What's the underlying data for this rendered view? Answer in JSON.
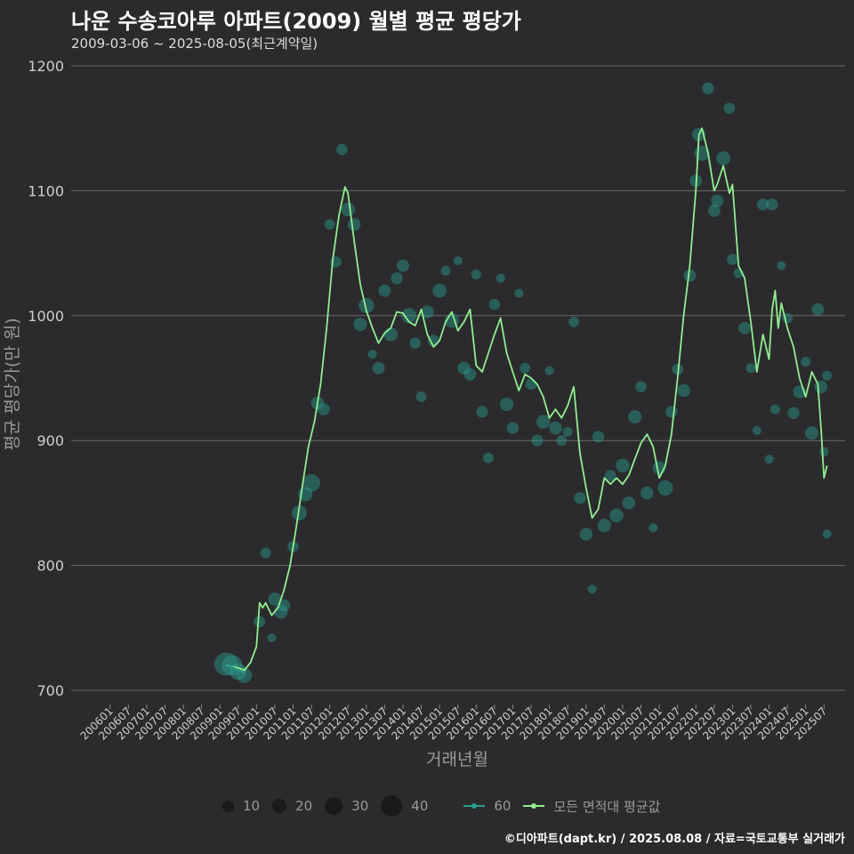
{
  "header": {
    "title": "나운 수송코아루 아파트(2009) 월별 평균 평당가",
    "subtitle": "2009-03-06 ~ 2025-08-05(최근계약일)"
  },
  "footer": {
    "credit": "©디아파트(dapt.kr) / 2025.08.08 / 자료=국토교통부 실거래가"
  },
  "colors": {
    "background": "#2b2b2d",
    "series_60": "#2a9d8f",
    "series_all": "#90ee90",
    "grid": "#6a6a6a"
  },
  "legend": {
    "size_items": [
      {
        "label": "10",
        "value": 10
      },
      {
        "label": "20",
        "value": 20
      },
      {
        "label": "30",
        "value": 30
      },
      {
        "label": "40",
        "value": 40
      }
    ],
    "series_items": [
      {
        "label": "60",
        "color": "#2a9d8f"
      },
      {
        "label": "모든 면적대 평균값",
        "color": "#90ee90"
      }
    ]
  },
  "chart_data": {
    "type": "line",
    "title": "나운 수송코아루 아파트(2009) 월별 평균 평당가",
    "xlabel": "거래년월",
    "ylabel": "평균 평당가(만 원)",
    "ylim": [
      690,
      1210
    ],
    "yticks": [
      700,
      800,
      900,
      1000,
      1100,
      1200
    ],
    "x_start": "2006-01",
    "x_end": "2025-08",
    "xtick_labels": [
      "200601",
      "200607",
      "200701",
      "200707",
      "200801",
      "200807",
      "200901",
      "200907",
      "201001",
      "201007",
      "201101",
      "201107",
      "201201",
      "201207",
      "201301",
      "201307",
      "201401",
      "201407",
      "201501",
      "201507",
      "201601",
      "201607",
      "201701",
      "201707",
      "201801",
      "201807",
      "201901",
      "201907",
      "202001",
      "202007",
      "202101",
      "202107",
      "202201",
      "202207",
      "202301",
      "202307",
      "202401",
      "202407",
      "202501",
      "202507"
    ],
    "series": [
      {
        "name": "모든 면적대 평균값",
        "values": [
          [
            "2009-03",
            720
          ],
          [
            "2009-05",
            719
          ],
          [
            "2009-07",
            718
          ],
          [
            "2009-09",
            716
          ],
          [
            "2009-11",
            722
          ],
          [
            "2010-01",
            735
          ],
          [
            "2010-02",
            770
          ],
          [
            "2010-03",
            766
          ],
          [
            "2010-04",
            770
          ],
          [
            "2010-06",
            760
          ],
          [
            "2010-08",
            766
          ],
          [
            "2010-10",
            780
          ],
          [
            "2010-12",
            800
          ],
          [
            "2011-02",
            830
          ],
          [
            "2011-04",
            863
          ],
          [
            "2011-06",
            895
          ],
          [
            "2011-08",
            915
          ],
          [
            "2011-10",
            945
          ],
          [
            "2011-12",
            990
          ],
          [
            "2012-02",
            1045
          ],
          [
            "2012-04",
            1080
          ],
          [
            "2012-06",
            1103
          ],
          [
            "2012-07",
            1098
          ],
          [
            "2012-09",
            1060
          ],
          [
            "2012-11",
            1025
          ],
          [
            "2013-01",
            1004
          ],
          [
            "2013-03",
            990
          ],
          [
            "2013-05",
            978
          ],
          [
            "2013-07",
            986
          ],
          [
            "2013-09",
            990
          ],
          [
            "2013-11",
            1003
          ],
          [
            "2014-01",
            1002
          ],
          [
            "2014-03",
            995
          ],
          [
            "2014-05",
            992
          ],
          [
            "2014-07",
            1005
          ],
          [
            "2014-09",
            985
          ],
          [
            "2014-11",
            975
          ],
          [
            "2015-01",
            980
          ],
          [
            "2015-03",
            995
          ],
          [
            "2015-05",
            1003
          ],
          [
            "2015-07",
            988
          ],
          [
            "2015-09",
            995
          ],
          [
            "2015-11",
            1005
          ],
          [
            "2016-01",
            960
          ],
          [
            "2016-03",
            955
          ],
          [
            "2016-05",
            970
          ],
          [
            "2016-07",
            985
          ],
          [
            "2016-09",
            998
          ],
          [
            "2016-11",
            970
          ],
          [
            "2017-01",
            955
          ],
          [
            "2017-03",
            940
          ],
          [
            "2017-05",
            953
          ],
          [
            "2017-07",
            950
          ],
          [
            "2017-09",
            945
          ],
          [
            "2017-11",
            935
          ],
          [
            "2018-01",
            918
          ],
          [
            "2018-03",
            925
          ],
          [
            "2018-05",
            918
          ],
          [
            "2018-07",
            928
          ],
          [
            "2018-09",
            943
          ],
          [
            "2018-11",
            890
          ],
          [
            "2019-01",
            862
          ],
          [
            "2019-03",
            838
          ],
          [
            "2019-05",
            845
          ],
          [
            "2019-07",
            870
          ],
          [
            "2019-09",
            865
          ],
          [
            "2019-11",
            870
          ],
          [
            "2020-01",
            865
          ],
          [
            "2020-03",
            872
          ],
          [
            "2020-05",
            885
          ],
          [
            "2020-07",
            898
          ],
          [
            "2020-09",
            905
          ],
          [
            "2020-11",
            895
          ],
          [
            "2021-01",
            870
          ],
          [
            "2021-03",
            880
          ],
          [
            "2021-05",
            905
          ],
          [
            "2021-07",
            950
          ],
          [
            "2021-09",
            1000
          ],
          [
            "2021-11",
            1040
          ],
          [
            "2022-01",
            1100
          ],
          [
            "2022-02",
            1145
          ],
          [
            "2022-03",
            1150
          ],
          [
            "2022-05",
            1130
          ],
          [
            "2022-07",
            1100
          ],
          [
            "2022-08",
            1105
          ],
          [
            "2022-10",
            1120
          ],
          [
            "2022-12",
            1098
          ],
          [
            "2023-01",
            1105
          ],
          [
            "2023-03",
            1040
          ],
          [
            "2023-05",
            1030
          ],
          [
            "2023-07",
            995
          ],
          [
            "2023-09",
            955
          ],
          [
            "2023-11",
            985
          ],
          [
            "2024-01",
            965
          ],
          [
            "2024-02",
            1005
          ],
          [
            "2024-03",
            1020
          ],
          [
            "2024-04",
            990
          ],
          [
            "2024-05",
            1010
          ],
          [
            "2024-07",
            990
          ],
          [
            "2024-09",
            975
          ],
          [
            "2024-11",
            950
          ],
          [
            "2025-01",
            935
          ],
          [
            "2025-03",
            955
          ],
          [
            "2025-05",
            945
          ],
          [
            "2025-06",
            910
          ],
          [
            "2025-07",
            870
          ],
          [
            "2025-08",
            880
          ]
        ]
      },
      {
        "name": "60",
        "values": [
          [
            "2009-03",
            720
          ],
          [
            "2009-05",
            719
          ],
          [
            "2009-07",
            716
          ],
          [
            "2009-09",
            714
          ]
        ]
      }
    ],
    "scatter": [
      [
        "2009-03",
        721,
        40
      ],
      [
        "2009-05",
        720,
        30
      ],
      [
        "2009-07",
        715,
        18
      ],
      [
        "2009-09",
        712,
        14
      ],
      [
        "2010-02",
        755,
        6
      ],
      [
        "2010-04",
        810,
        5
      ],
      [
        "2010-06",
        742,
        3
      ],
      [
        "2010-07",
        773,
        10
      ],
      [
        "2010-09",
        763,
        11
      ],
      [
        "2010-10",
        768,
        8
      ],
      [
        "2011-01",
        815,
        6
      ],
      [
        "2011-03",
        842,
        14
      ],
      [
        "2011-05",
        857,
        12
      ],
      [
        "2011-07",
        866,
        20
      ],
      [
        "2011-09",
        930,
        9
      ],
      [
        "2011-11",
        925,
        8
      ],
      [
        "2012-01",
        1073,
        5
      ],
      [
        "2012-03",
        1043,
        6
      ],
      [
        "2012-05",
        1133,
        6
      ],
      [
        "2012-07",
        1085,
        11
      ],
      [
        "2012-09",
        1073,
        9
      ],
      [
        "2012-11",
        993,
        10
      ],
      [
        "2013-01",
        1008,
        14
      ],
      [
        "2013-03",
        969,
        3
      ],
      [
        "2013-05",
        958,
        8
      ],
      [
        "2013-07",
        1020,
        8
      ],
      [
        "2013-09",
        985,
        11
      ],
      [
        "2013-11",
        1030,
        7
      ],
      [
        "2014-01",
        1040,
        8
      ],
      [
        "2014-03",
        1000,
        14
      ],
      [
        "2014-05",
        978,
        6
      ],
      [
        "2014-07",
        935,
        5
      ],
      [
        "2014-09",
        1003,
        9
      ],
      [
        "2014-11",
        980,
        7
      ],
      [
        "2015-01",
        1020,
        11
      ],
      [
        "2015-03",
        1036,
        4
      ],
      [
        "2015-05",
        996,
        12
      ],
      [
        "2015-07",
        1044,
        3
      ],
      [
        "2015-09",
        958,
        9
      ],
      [
        "2015-11",
        953,
        8
      ],
      [
        "2016-01",
        1033,
        4
      ],
      [
        "2016-03",
        923,
        7
      ],
      [
        "2016-05",
        886,
        5
      ],
      [
        "2016-07",
        1009,
        6
      ],
      [
        "2016-09",
        1030,
        3
      ],
      [
        "2016-11",
        929,
        10
      ],
      [
        "2017-01",
        910,
        7
      ],
      [
        "2017-03",
        1018,
        3
      ],
      [
        "2017-05",
        958,
        5
      ],
      [
        "2017-07",
        945,
        6
      ],
      [
        "2017-09",
        900,
        7
      ],
      [
        "2017-11",
        915,
        11
      ],
      [
        "2018-01",
        956,
        3
      ],
      [
        "2018-03",
        910,
        9
      ],
      [
        "2018-05",
        900,
        5
      ],
      [
        "2018-07",
        907,
        4
      ],
      [
        "2018-09",
        995,
        5
      ],
      [
        "2018-11",
        854,
        7
      ],
      [
        "2019-01",
        825,
        9
      ],
      [
        "2019-03",
        781,
        3
      ],
      [
        "2019-05",
        903,
        7
      ],
      [
        "2019-07",
        832,
        10
      ],
      [
        "2019-09",
        872,
        6
      ],
      [
        "2019-11",
        840,
        11
      ],
      [
        "2020-01",
        880,
        11
      ],
      [
        "2020-03",
        850,
        9
      ],
      [
        "2020-05",
        919,
        10
      ],
      [
        "2020-07",
        943,
        6
      ],
      [
        "2020-09",
        858,
        9
      ],
      [
        "2020-11",
        830,
        3
      ],
      [
        "2021-01",
        878,
        10
      ],
      [
        "2021-03",
        862,
        14
      ],
      [
        "2021-05",
        923,
        7
      ],
      [
        "2021-07",
        957,
        6
      ],
      [
        "2021-09",
        940,
        9
      ],
      [
        "2021-11",
        1032,
        8
      ],
      [
        "2022-01",
        1108,
        8
      ],
      [
        "2022-02",
        1145,
        10
      ],
      [
        "2022-03",
        1130,
        14
      ],
      [
        "2022-05",
        1182,
        7
      ],
      [
        "2022-07",
        1084,
        8
      ],
      [
        "2022-08",
        1092,
        8
      ],
      [
        "2022-10",
        1126,
        11
      ],
      [
        "2022-12",
        1166,
        6
      ],
      [
        "2023-01",
        1045,
        6
      ],
      [
        "2023-03",
        1034,
        4
      ],
      [
        "2023-05",
        990,
        8
      ],
      [
        "2023-07",
        958,
        4
      ],
      [
        "2023-09",
        908,
        3
      ],
      [
        "2023-11",
        1089,
        7
      ],
      [
        "2024-01",
        885,
        3
      ],
      [
        "2024-02",
        1089,
        7
      ],
      [
        "2024-03",
        925,
        4
      ],
      [
        "2024-05",
        1040,
        3
      ],
      [
        "2024-07",
        998,
        5
      ],
      [
        "2024-09",
        922,
        7
      ],
      [
        "2024-11",
        939,
        9
      ],
      [
        "2025-01",
        963,
        4
      ],
      [
        "2025-03",
        906,
        10
      ],
      [
        "2025-05",
        1005,
        8
      ],
      [
        "2025-06",
        943,
        9
      ],
      [
        "2025-07",
        891,
        3
      ],
      [
        "2025-08",
        825,
        3
      ],
      [
        "2025-08",
        952,
        4
      ]
    ]
  }
}
